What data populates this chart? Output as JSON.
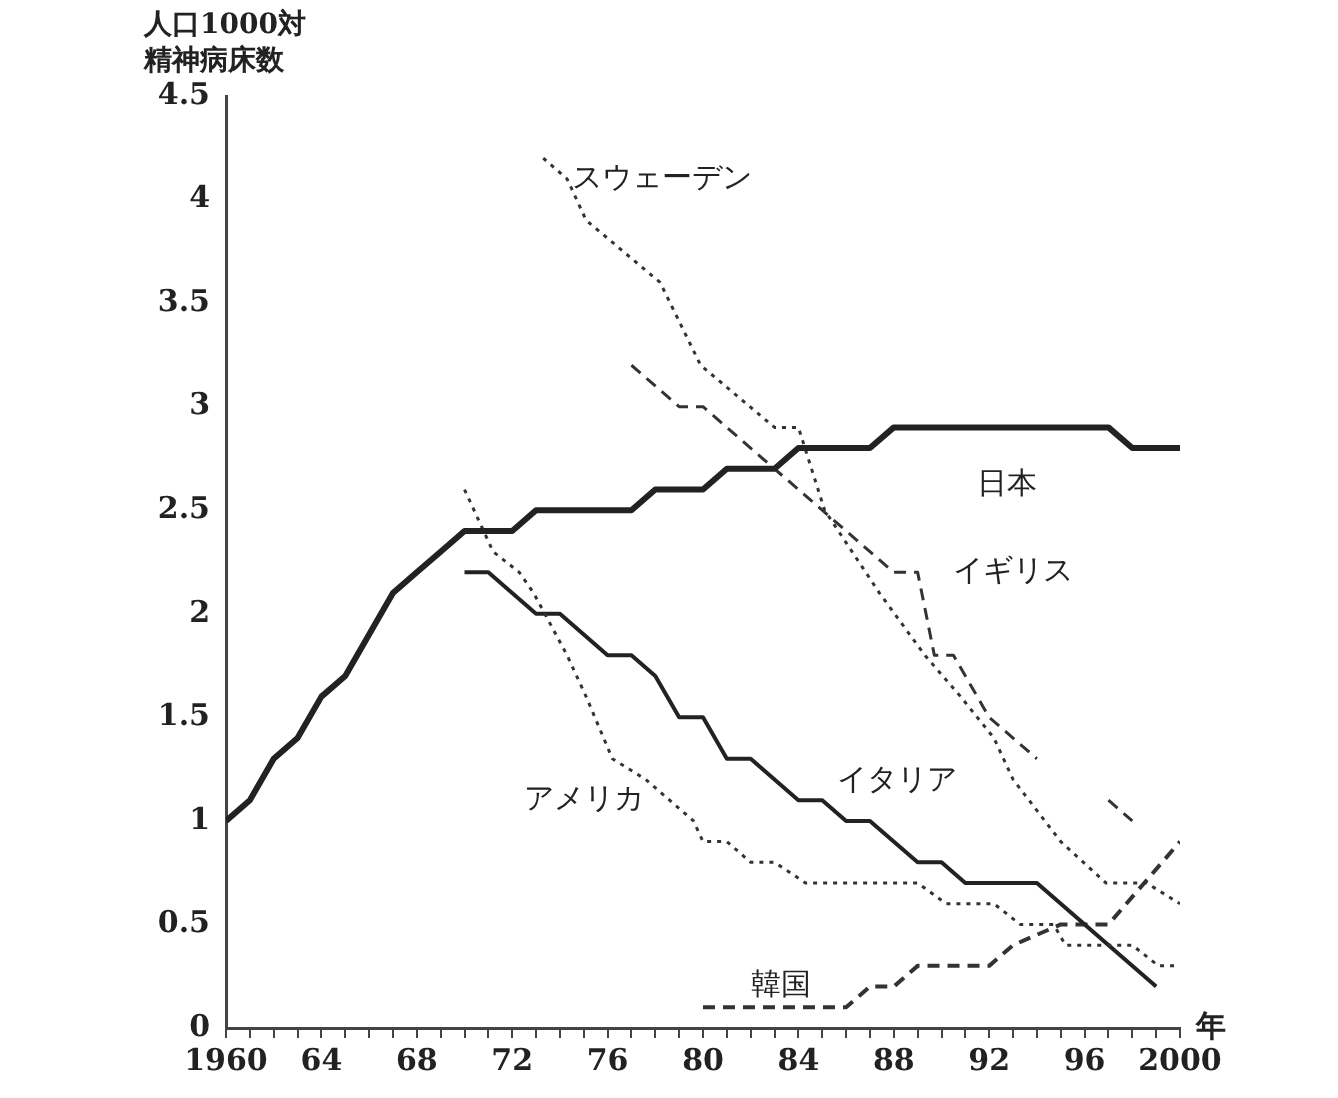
{
  "chart_data": {
    "type": "line",
    "ylabel": "人口1000対精神病床数",
    "xlabel": "年",
    "xlim": [
      1960,
      2000
    ],
    "xticks": [
      1960,
      {
        "value": 1961,
        "label": null
      },
      {
        "value": 1962,
        "label": null
      },
      {
        "value": 1963,
        "label": null
      },
      {
        "value": 1964,
        "label": "64"
      },
      {
        "value": 1965,
        "label": null
      },
      {
        "value": 1966,
        "label": null
      },
      {
        "value": 1967,
        "label": null
      },
      {
        "value": 1968,
        "label": "68"
      },
      {
        "value": 1969,
        "label": null
      },
      {
        "value": 1970,
        "label": null
      },
      {
        "value": 1971,
        "label": null
      },
      {
        "value": 1972,
        "label": "72"
      },
      {
        "value": 1973,
        "label": null
      },
      {
        "value": 1974,
        "label": null
      },
      {
        "value": 1975,
        "label": null
      },
      {
        "value": 1976,
        "label": "76"
      },
      {
        "value": 1977,
        "label": null
      },
      {
        "value": 1978,
        "label": null
      },
      {
        "value": 1979,
        "label": null
      },
      {
        "value": 1980,
        "label": "80"
      },
      {
        "value": 1981,
        "label": null
      },
      {
        "value": 1982,
        "label": null
      },
      {
        "value": 1983,
        "label": null
      },
      {
        "value": 1984,
        "label": "84"
      },
      {
        "value": 1985,
        "label": null
      },
      {
        "value": 1986,
        "label": null
      },
      {
        "value": 1987,
        "label": null
      },
      {
        "value": 1988,
        "label": "88"
      },
      {
        "value": 1989,
        "label": null
      },
      {
        "value": 1990,
        "label": null
      },
      {
        "value": 1991,
        "label": null
      },
      {
        "value": 1992,
        "label": "92"
      },
      {
        "value": 1993,
        "label": null
      },
      {
        "value": 1994,
        "label": null
      },
      {
        "value": 1995,
        "label": null
      },
      {
        "value": 1996,
        "label": "96"
      },
      {
        "value": 1997,
        "label": null
      },
      {
        "value": 1998,
        "label": null
      },
      {
        "value": 1999,
        "label": null
      },
      2000
    ],
    "ylim": [
      0,
      4.5
    ],
    "yticks": [
      0,
      0.5,
      1,
      1.5,
      2,
      2.5,
      3,
      3.5,
      4,
      4.5
    ],
    "grid": false,
    "legend": false,
    "marker": "none",
    "series": [
      {
        "name": "日本",
        "color": "#222222",
        "line_style": "solid",
        "x": [
          1960,
          1961,
          1962,
          1963,
          1964,
          1965,
          1966,
          1967,
          1968,
          1969,
          1970,
          1972,
          1973,
          1977,
          1978,
          1980,
          1981,
          1983,
          1984,
          1987,
          1988,
          1997,
          1998,
          2000
        ],
        "values": [
          1.0,
          1.1,
          1.3,
          1.4,
          1.6,
          1.7,
          1.9,
          2.1,
          2.2,
          2.3,
          2.4,
          2.4,
          2.5,
          2.5,
          2.6,
          2.6,
          2.7,
          2.7,
          2.8,
          2.8,
          2.9,
          2.9,
          2.8,
          2.8
        ]
      },
      {
        "name": "スウェーデン",
        "color": "#333333",
        "line_style": "dotted",
        "x": [
          1973.3,
          1974.3,
          1975.1,
          1978.2,
          1979.9,
          1983,
          1984,
          1985.1,
          1987.4,
          1989.3,
          1990.8,
          1992.2,
          1993,
          1995,
          1996.9,
          1998.6,
          2000
        ],
        "values": [
          4.2,
          4.1,
          3.9,
          3.6,
          3.2,
          2.9,
          2.9,
          2.5,
          2.1,
          1.8,
          1.6,
          1.4,
          1.2,
          0.9,
          0.7,
          0.7,
          0.6
        ]
      },
      {
        "name": "イギリス",
        "color": "#333333",
        "line_style": "dashed",
        "x": [
          1977,
          1979,
          1980,
          1983,
          1985,
          1988,
          1989,
          1989.7,
          1990.5,
          1992,
          1994,
          1996,
          1997,
          1998
        ],
        "values": [
          3.2,
          3.0,
          3.0,
          2.7,
          2.5,
          2.2,
          2.2,
          1.8,
          1.8,
          1.5,
          1.3,
          null,
          1.1,
          1.0
        ]
      },
      {
        "name": "アメリカ",
        "color": "#333333",
        "line_style": "dotted",
        "x": [
          1970,
          1971.2,
          1972.3,
          1972.9,
          1974.3,
          1975.1,
          1976.2,
          1977.6,
          1979.6,
          1980,
          1981,
          1982,
          1983,
          1984.3,
          1989,
          1990.2,
          1992.2,
          1993.3,
          1994.7,
          1995.2,
          1998,
          1999.1,
          2000
        ],
        "values": [
          2.6,
          2.3,
          2.2,
          2.1,
          1.8,
          1.6,
          1.3,
          1.2,
          1.0,
          0.9,
          0.9,
          0.8,
          0.8,
          0.7,
          0.7,
          0.6,
          0.6,
          0.5,
          0.5,
          0.4,
          0.4,
          0.3,
          0.3
        ]
      },
      {
        "name": "イタリア",
        "color": "#222222",
        "line_style": "solid",
        "x": [
          1970,
          1971,
          1973,
          1974,
          1976,
          1977,
          1978,
          1979,
          1980,
          1981,
          1982,
          1984,
          1985,
          1986,
          1987,
          1989,
          1990,
          1991,
          1994,
          1999
        ],
        "values": [
          2.2,
          2.2,
          2.0,
          2.0,
          1.8,
          1.8,
          1.7,
          1.5,
          1.5,
          1.3,
          1.3,
          1.1,
          1.1,
          1.0,
          1.0,
          0.8,
          0.8,
          0.7,
          0.7,
          0.2
        ]
      },
      {
        "name": "韓国",
        "color": "#333333",
        "line_style": "dashed",
        "x": [
          1980,
          1986,
          1987,
          1988,
          1989,
          1992,
          1993,
          1995,
          1997,
          2000
        ],
        "values": [
          0.1,
          0.1,
          0.2,
          0.2,
          0.3,
          0.3,
          0.4,
          0.5,
          0.5,
          0.9
        ]
      }
    ]
  }
}
